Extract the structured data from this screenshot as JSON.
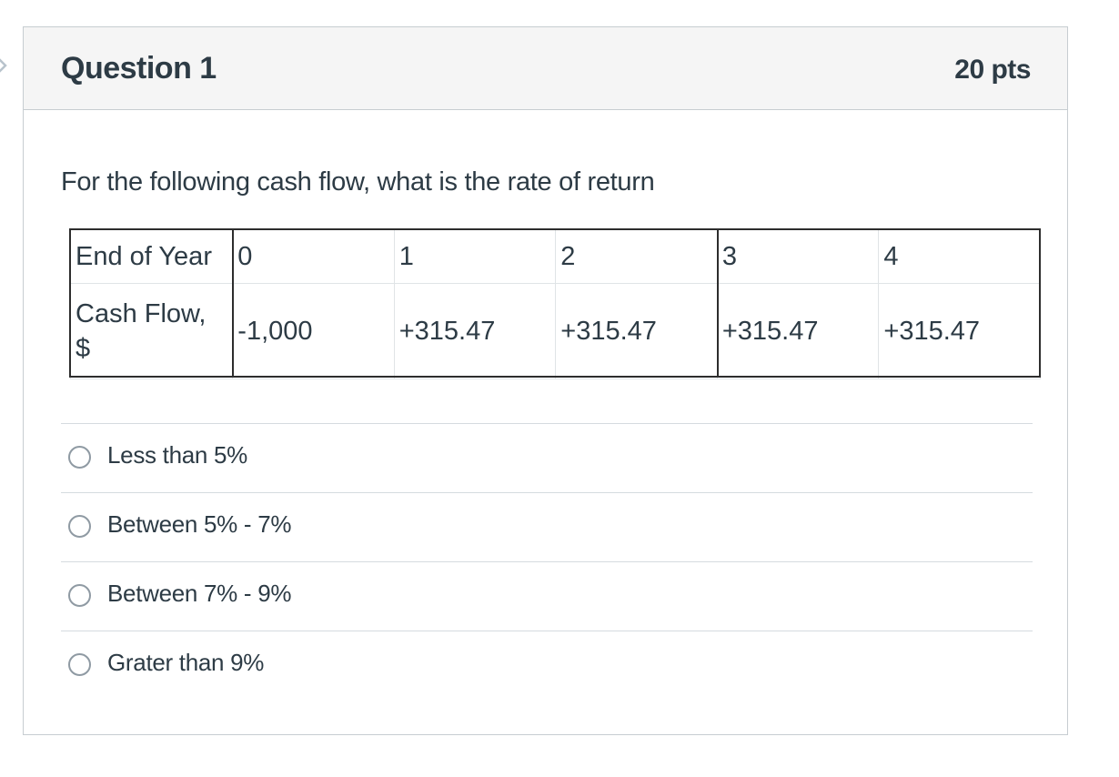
{
  "question": {
    "title": "Question 1",
    "points": "20 pts",
    "text": "For the following cash flow, what is the rate of return"
  },
  "table": {
    "row_year": {
      "label": "End of Year",
      "values": [
        "0",
        "1",
        "2",
        "3",
        "4"
      ]
    },
    "row_cash_flow": {
      "label": "Cash Flow, $",
      "values": [
        "-1,000",
        "+315.47",
        "+315.47",
        "+315.47",
        "+315.47"
      ]
    }
  },
  "answers": [
    {
      "label": "Less than 5%"
    },
    {
      "label": "Between 5% - 7%"
    },
    {
      "label": "Between 7% - 9%"
    },
    {
      "label": "Grater than 9%"
    }
  ]
}
